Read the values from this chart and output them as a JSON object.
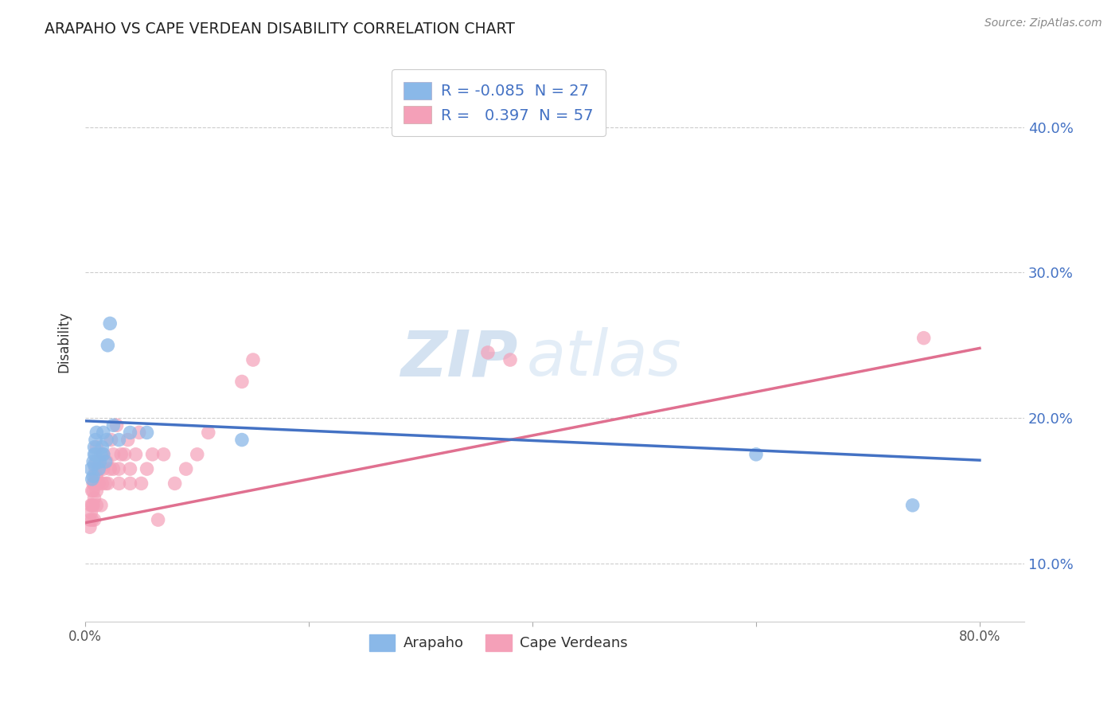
{
  "title": "ARAPAHO VS CAPE VERDEAN DISABILITY CORRELATION CHART",
  "source": "Source: ZipAtlas.com",
  "ylabel": "Disability",
  "ytick_labels": [
    "10.0%",
    "20.0%",
    "30.0%",
    "40.0%"
  ],
  "ytick_values": [
    0.1,
    0.2,
    0.3,
    0.4
  ],
  "xtick_labels": [
    "0.0%",
    "80.0%"
  ],
  "xtick_values": [
    0.0,
    0.8
  ],
  "xlim": [
    0.0,
    0.84
  ],
  "ylim": [
    0.06,
    0.445
  ],
  "legend_r_arapaho": "-0.085",
  "legend_n_arapaho": "27",
  "legend_r_cape": "0.397",
  "legend_n_cape": "57",
  "arapaho_color": "#8ab8e8",
  "cape_color": "#f4a0b8",
  "arapaho_line_color": "#4472c4",
  "cape_line_color": "#e07090",
  "arapaho_line_start_y": 0.198,
  "arapaho_line_end_y": 0.171,
  "cape_line_start_y": 0.128,
  "cape_line_end_y": 0.248,
  "arapaho_points_x": [
    0.005,
    0.006,
    0.007,
    0.007,
    0.008,
    0.008,
    0.008,
    0.009,
    0.009,
    0.01,
    0.012,
    0.013,
    0.014,
    0.015,
    0.016,
    0.016,
    0.018,
    0.019,
    0.02,
    0.022,
    0.025,
    0.03,
    0.04,
    0.055,
    0.14,
    0.6,
    0.74
  ],
  "arapaho_points_y": [
    0.165,
    0.158,
    0.16,
    0.17,
    0.168,
    0.175,
    0.18,
    0.175,
    0.185,
    0.19,
    0.165,
    0.17,
    0.175,
    0.18,
    0.175,
    0.19,
    0.17,
    0.185,
    0.25,
    0.265,
    0.195,
    0.185,
    0.19,
    0.19,
    0.185,
    0.175,
    0.14
  ],
  "cape_points_x": [
    0.004,
    0.004,
    0.005,
    0.005,
    0.006,
    0.006,
    0.006,
    0.007,
    0.007,
    0.007,
    0.008,
    0.008,
    0.008,
    0.009,
    0.009,
    0.01,
    0.01,
    0.01,
    0.01,
    0.01,
    0.012,
    0.013,
    0.014,
    0.015,
    0.016,
    0.016,
    0.018,
    0.019,
    0.02,
    0.022,
    0.023,
    0.025,
    0.025,
    0.028,
    0.03,
    0.03,
    0.032,
    0.035,
    0.038,
    0.04,
    0.04,
    0.045,
    0.048,
    0.05,
    0.055,
    0.06,
    0.065,
    0.07,
    0.08,
    0.09,
    0.1,
    0.11,
    0.14,
    0.15,
    0.36,
    0.38,
    0.75
  ],
  "cape_points_y": [
    0.125,
    0.13,
    0.135,
    0.14,
    0.13,
    0.14,
    0.15,
    0.14,
    0.15,
    0.155,
    0.13,
    0.145,
    0.155,
    0.16,
    0.165,
    0.14,
    0.15,
    0.16,
    0.17,
    0.18,
    0.155,
    0.165,
    0.14,
    0.155,
    0.165,
    0.175,
    0.155,
    0.17,
    0.155,
    0.165,
    0.185,
    0.165,
    0.175,
    0.195,
    0.155,
    0.165,
    0.175,
    0.175,
    0.185,
    0.155,
    0.165,
    0.175,
    0.19,
    0.155,
    0.165,
    0.175,
    0.13,
    0.175,
    0.155,
    0.165,
    0.175,
    0.19,
    0.225,
    0.24,
    0.245,
    0.24,
    0.255
  ],
  "watermark_zip": "ZIP",
  "watermark_atlas": "atlas",
  "background_color": "#ffffff",
  "grid_color": "#cccccc",
  "grid_linestyle": "--"
}
